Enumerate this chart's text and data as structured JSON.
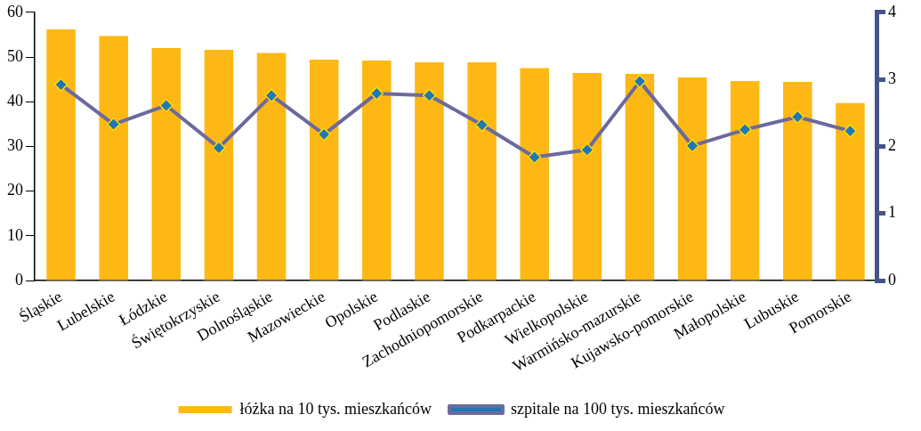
{
  "chart_data": {
    "type": "bar",
    "categories": [
      "Śląskie",
      "Lubelskie",
      "Łódzkie",
      "Świętokrzyskie",
      "Dolnośląskie",
      "Mazowieckie",
      "Opolskie",
      "Podlaskie",
      "Zachodniopomorskie",
      "Podkarpackie",
      "Wielkopolskie",
      "Warmińsko-mazurskie",
      "Kujawsko-pomorskie",
      "Małopolskie",
      "Lubuskie",
      "Pomorskie"
    ],
    "series": [
      {
        "name": "łóżka na 10 tys. mieszkańców",
        "color": "#fdb813",
        "values": [
          56.2,
          54.7,
          52.0,
          51.6,
          50.9,
          49.4,
          49.2,
          48.8,
          48.8,
          47.5,
          46.4,
          46.2,
          45.4,
          44.6,
          44.4,
          39.7
        ]
      },
      {
        "name": "szpitale na 100 tys. mieszkańców",
        "type": "line",
        "axis": "y2",
        "color": "#6a6a9e",
        "values": [
          2.92,
          2.33,
          2.61,
          1.98,
          2.76,
          2.18,
          2.79,
          2.76,
          2.32,
          1.84,
          1.95,
          2.97,
          2.01,
          2.25,
          2.44,
          2.23
        ]
      }
    ],
    "ylim": [
      0,
      60
    ],
    "yticks": [
      0,
      10,
      20,
      30,
      40,
      50,
      60
    ],
    "y2lim": [
      0,
      4
    ],
    "y2ticks": [
      0,
      1,
      2,
      3,
      4
    ],
    "grid": false,
    "legend": "bottom",
    "marker": "diamond",
    "line_style": "solid"
  }
}
